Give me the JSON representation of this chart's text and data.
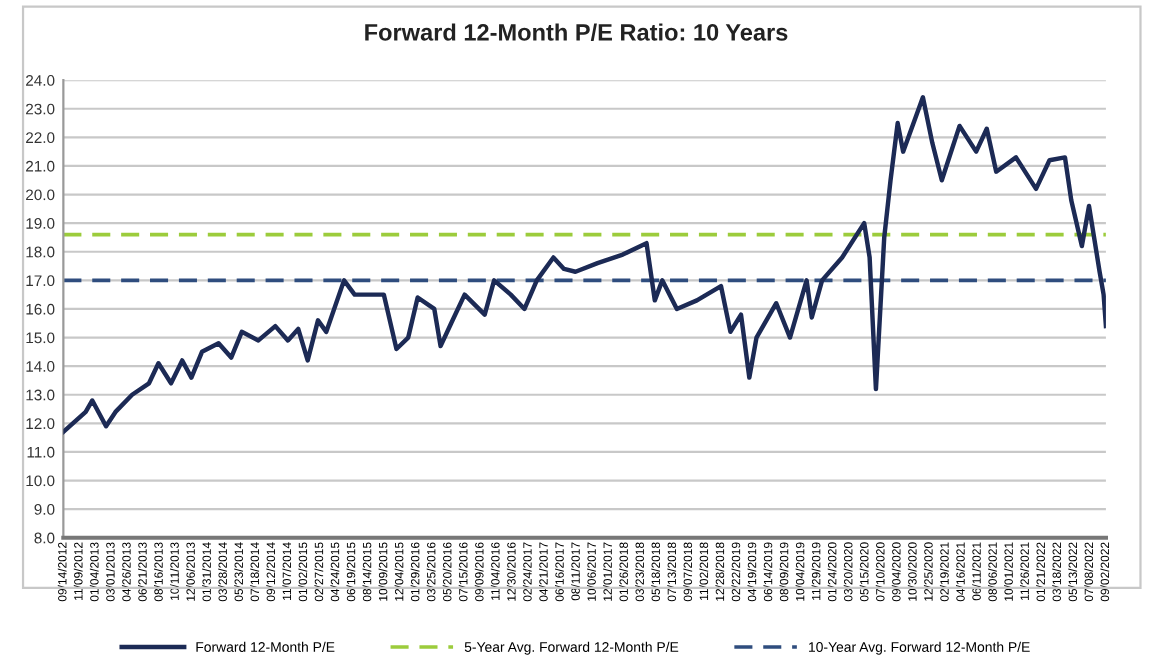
{
  "chart_data": {
    "type": "line",
    "title": "Forward 12-Month P/E Ratio: 10 Years",
    "x": [
      "2012-09-14",
      "2012-12-01",
      "2012-12-24",
      "2013-02-10",
      "2013-03-15",
      "2013-05-12",
      "2013-07-10",
      "2013-08-12",
      "2013-09-25",
      "2013-11-03",
      "2013-12-05",
      "2014-01-11",
      "2014-03-10",
      "2014-04-23",
      "2014-05-30",
      "2014-07-27",
      "2014-09-24",
      "2014-11-07",
      "2014-12-13",
      "2015-01-15",
      "2015-02-20",
      "2015-03-21",
      "2015-05-22",
      "2015-06-28",
      "2015-10-08",
      "2015-11-21",
      "2016-01-01",
      "2016-02-03",
      "2016-04-01",
      "2016-04-23",
      "2016-05-30",
      "2016-07-16",
      "2016-09-24",
      "2016-10-27",
      "2016-12-24",
      "2017-02-10",
      "2017-03-25",
      "2017-05-22",
      "2017-06-28",
      "2017-08-07",
      "2017-10-23",
      "2018-01-19",
      "2018-04-12",
      "2018-05-11",
      "2018-06-06",
      "2018-07-27",
      "2018-10-05",
      "2018-12-28",
      "2019-01-30",
      "2019-03-08",
      "2019-04-06",
      "2019-05-01",
      "2019-07-09",
      "2019-08-26",
      "2019-10-23",
      "2019-11-10",
      "2019-12-16",
      "2020-02-24",
      "2020-05-11",
      "2020-05-30",
      "2020-06-21",
      "2020-07-20",
      "2020-08-11",
      "2020-09-05",
      "2020-09-24",
      "2020-12-02",
      "2021-01-04",
      "2021-02-06",
      "2021-04-09",
      "2021-06-06",
      "2021-07-13",
      "2021-08-15",
      "2021-10-23",
      "2022-01-01",
      "2022-02-17",
      "2022-04-12",
      "2022-05-04",
      "2022-06-10",
      "2022-07-05",
      "2022-08-11",
      "2022-08-25",
      "2022-09-02"
    ],
    "series": [
      {
        "name": "Forward 12-Month P/E",
        "color": "#1c2a55",
        "values": [
          11.7,
          12.4,
          12.8,
          11.9,
          12.4,
          13.0,
          13.4,
          14.1,
          13.4,
          14.2,
          13.6,
          14.5,
          14.8,
          14.3,
          15.2,
          14.9,
          15.4,
          14.9,
          15.3,
          14.2,
          15.6,
          15.2,
          17.0,
          16.5,
          16.5,
          14.6,
          15.0,
          16.4,
          16.0,
          14.7,
          15.5,
          16.5,
          15.8,
          17.0,
          16.5,
          16.0,
          17.0,
          17.8,
          17.4,
          17.3,
          17.6,
          17.9,
          18.3,
          16.3,
          17.0,
          16.0,
          16.3,
          16.8,
          15.2,
          15.8,
          13.6,
          15.0,
          16.2,
          15.0,
          17.0,
          15.7,
          17.0,
          17.8,
          19.0,
          17.8,
          13.2,
          18.5,
          20.5,
          22.5,
          21.5,
          23.4,
          21.8,
          20.5,
          22.4,
          21.5,
          22.3,
          20.8,
          21.3,
          20.2,
          21.2,
          21.3,
          19.8,
          18.2,
          19.6,
          17.3,
          16.5,
          15.4
        ]
      }
    ],
    "ref_lines": [
      {
        "axis": "y",
        "value": 18.6,
        "label": "5-Year Avg. Forward 12-Month P/E",
        "color": "#9ccc3c",
        "line_style": "dashed"
      },
      {
        "axis": "y",
        "value": 17.0,
        "label": "10-Year Avg. Forward 12-Month P/E",
        "color": "#2f4d7e",
        "line_style": "dashed"
      }
    ],
    "ylim": [
      8,
      24
    ],
    "yticks": [
      {
        "value": 8,
        "label": "8.0"
      },
      {
        "value": 9,
        "label": "9.0"
      },
      {
        "value": 10,
        "label": "10.0"
      },
      {
        "value": 11,
        "label": "11.0"
      },
      {
        "value": 12,
        "label": "12.0"
      },
      {
        "value": 13,
        "label": "13.0"
      },
      {
        "value": 14,
        "label": "14.0"
      },
      {
        "value": 15,
        "label": "15.0"
      },
      {
        "value": 16,
        "label": "16.0"
      },
      {
        "value": 17,
        "label": "17.0"
      },
      {
        "value": 18,
        "label": "18.0"
      },
      {
        "value": 19,
        "label": "19.0"
      },
      {
        "value": 20,
        "label": "20.0"
      },
      {
        "value": 21,
        "label": "21.0"
      },
      {
        "value": 22,
        "label": "22.0"
      },
      {
        "value": 23,
        "label": "23.0"
      },
      {
        "value": 24,
        "label": "24.0"
      }
    ],
    "xlim": [
      "2012-09-14",
      "2022-09-02"
    ],
    "xticks": [
      {
        "value": "2012-09-14",
        "label": "09/14/2012"
      },
      {
        "value": "2012-11-09",
        "label": "11/09/2012"
      },
      {
        "value": "2013-01-04",
        "label": "01/04/2013"
      },
      {
        "value": "2013-03-01",
        "label": "03/01/2013"
      },
      {
        "value": "2013-04-26",
        "label": "04/26/2013"
      },
      {
        "value": "2013-06-21",
        "label": "06/21/2013"
      },
      {
        "value": "2013-08-16",
        "label": "08/16/2013"
      },
      {
        "value": "2013-10-11",
        "label": "10/11/2013"
      },
      {
        "value": "2013-12-06",
        "label": "12/06/2013"
      },
      {
        "value": "2014-01-31",
        "label": "01/31/2014"
      },
      {
        "value": "2014-03-28",
        "label": "03/28/2014"
      },
      {
        "value": "2014-05-23",
        "label": "05/23/2014"
      },
      {
        "value": "2014-07-18",
        "label": "07/18/2014"
      },
      {
        "value": "2014-09-12",
        "label": "09/12/2014"
      },
      {
        "value": "2014-11-07",
        "label": "11/07/2014"
      },
      {
        "value": "2015-01-02",
        "label": "01/02/2015"
      },
      {
        "value": "2015-02-27",
        "label": "02/27/2015"
      },
      {
        "value": "2015-04-24",
        "label": "04/24/2015"
      },
      {
        "value": "2015-06-19",
        "label": "06/19/2015"
      },
      {
        "value": "2015-08-14",
        "label": "08/14/2015"
      },
      {
        "value": "2015-10-09",
        "label": "10/09/2015"
      },
      {
        "value": "2015-12-04",
        "label": "12/04/2015"
      },
      {
        "value": "2016-01-29",
        "label": "01/29/2016"
      },
      {
        "value": "2016-03-25",
        "label": "03/25/2016"
      },
      {
        "value": "2016-05-20",
        "label": "05/20/2016"
      },
      {
        "value": "2016-07-15",
        "label": "07/15/2016"
      },
      {
        "value": "2016-09-09",
        "label": "09/09/2016"
      },
      {
        "value": "2016-11-04",
        "label": "11/04/2016"
      },
      {
        "value": "2016-12-30",
        "label": "12/30/2016"
      },
      {
        "value": "2017-02-24",
        "label": "02/24/2017"
      },
      {
        "value": "2017-04-21",
        "label": "04/21/2017"
      },
      {
        "value": "2017-06-16",
        "label": "06/16/2017"
      },
      {
        "value": "2017-08-11",
        "label": "08/11/2017"
      },
      {
        "value": "2017-10-06",
        "label": "10/06/2017"
      },
      {
        "value": "2017-12-01",
        "label": "12/01/2017"
      },
      {
        "value": "2018-01-26",
        "label": "01/26/2018"
      },
      {
        "value": "2018-03-23",
        "label": "03/23/2018"
      },
      {
        "value": "2018-05-18",
        "label": "05/18/2018"
      },
      {
        "value": "2018-07-13",
        "label": "07/13/2018"
      },
      {
        "value": "2018-09-07",
        "label": "09/07/2018"
      },
      {
        "value": "2018-11-02",
        "label": "11/02/2018"
      },
      {
        "value": "2018-12-28",
        "label": "12/28/2018"
      },
      {
        "value": "2019-02-22",
        "label": "02/22/2019"
      },
      {
        "value": "2019-04-19",
        "label": "04/19/2019"
      },
      {
        "value": "2019-06-14",
        "label": "06/14/2019"
      },
      {
        "value": "2019-08-09",
        "label": "08/09/2019"
      },
      {
        "value": "2019-10-04",
        "label": "10/04/2019"
      },
      {
        "value": "2019-11-29",
        "label": "11/29/2019"
      },
      {
        "value": "2020-01-24",
        "label": "01/24/2020"
      },
      {
        "value": "2020-03-20",
        "label": "03/20/2020"
      },
      {
        "value": "2020-05-15",
        "label": "05/15/2020"
      },
      {
        "value": "2020-07-10",
        "label": "07/10/2020"
      },
      {
        "value": "2020-09-04",
        "label": "09/04/2020"
      },
      {
        "value": "2020-10-30",
        "label": "10/30/2020"
      },
      {
        "value": "2020-12-25",
        "label": "12/25/2020"
      },
      {
        "value": "2021-02-19",
        "label": "02/19/2021"
      },
      {
        "value": "2021-04-16",
        "label": "04/16/2021"
      },
      {
        "value": "2021-06-11",
        "label": "06/11/2021"
      },
      {
        "value": "2021-08-06",
        "label": "08/06/2021"
      },
      {
        "value": "2021-10-01",
        "label": "10/01/2021"
      },
      {
        "value": "2021-11-26",
        "label": "11/26/2021"
      },
      {
        "value": "2022-01-21",
        "label": "01/21/2022"
      },
      {
        "value": "2022-03-18",
        "label": "03/18/2022"
      },
      {
        "value": "2022-05-13",
        "label": "05/13/2022"
      },
      {
        "value": "2022-07-08",
        "label": "07/08/2022"
      },
      {
        "value": "2022-09-02",
        "label": "09/02/2022"
      }
    ],
    "grid": "y",
    "legend": "bottom",
    "line_style": "solid",
    "marker": "none"
  }
}
